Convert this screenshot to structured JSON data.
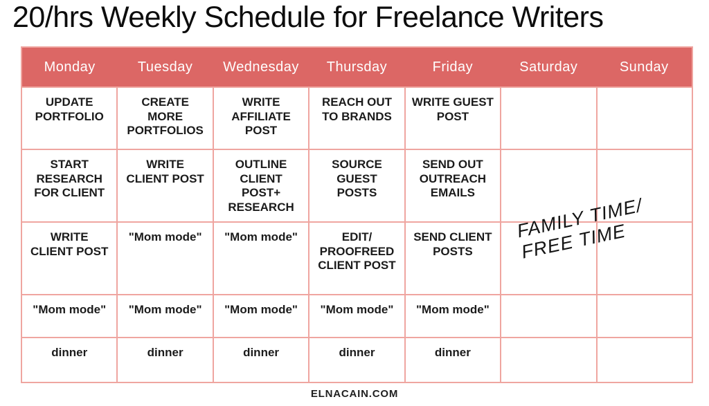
{
  "title": "20/hrs Weekly Schedule for Freelance Writers",
  "footer": "ELNACAIN.COM",
  "colors": {
    "header_bg": "#dc6765",
    "header_text": "#ffffff",
    "grid_line": "#efa5a0",
    "cell_text": "#1b1b1b",
    "background": "#ffffff"
  },
  "weekend_note": {
    "line1": "FAMILY TIME/",
    "line2": "FREE TIME"
  },
  "table": {
    "days": [
      "Monday",
      "Tuesday",
      "Wednesday",
      "Thursday",
      "Friday",
      "Saturday",
      "Sunday"
    ],
    "rows": [
      {
        "cells": [
          "UPDATE PORTFOLIO",
          "CREATE MORE PORTFOLIOS",
          "WRITE AFFILIATE POST",
          "REACH OUT TO BRANDS",
          "WRITE GUEST POST",
          "",
          ""
        ]
      },
      {
        "cells": [
          "START RESEARCH FOR CLIENT",
          "WRITE CLIENT POST",
          "OUTLINE CLIENT POST+ RESEARCH",
          "SOURCE GUEST POSTS",
          "SEND OUT OUTREACH EMAILS",
          "",
          ""
        ]
      },
      {
        "cells": [
          "WRITE CLIENT POST",
          "\"Mom mode\"",
          "\"Mom mode\"",
          "EDIT/ PROOFREED CLIENT POST",
          "SEND CLIENT POSTS",
          "",
          ""
        ]
      },
      {
        "cells": [
          "\"Mom mode\"",
          "\"Mom mode\"",
          "\"Mom mode\"",
          "\"Mom mode\"",
          "\"Mom mode\"",
          "",
          ""
        ]
      },
      {
        "cells": [
          "dinner",
          "dinner",
          "dinner",
          "dinner",
          "dinner",
          "",
          ""
        ]
      }
    ]
  }
}
